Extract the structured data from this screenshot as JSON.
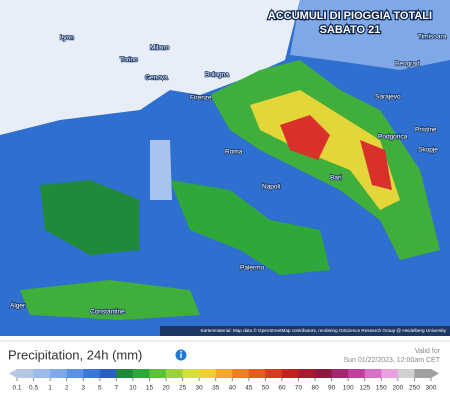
{
  "map": {
    "title": "ACCUMULI DI PIOGGIA TOTALI",
    "subtitle": "SABATO 21",
    "cities": [
      "Lyon",
      "Milano",
      "Torino",
      "Genova",
      "Bologna",
      "Firenze",
      "Roma",
      "Napoli",
      "Bari",
      "Palermo",
      "Sarajevo",
      "Podgorica",
      "Skopje",
      "Pristine",
      "Beograd",
      "Timisoara",
      "Alger",
      "Constantine"
    ],
    "attribution": "Kartenmaterial: Map data © OpenStreetMap contributors, rendering GIScience Research Group @ Heidelberg University"
  },
  "legend": {
    "title": "Precipitation, 24h (mm)",
    "valid_label": "Valid for",
    "valid_time": "Sun 01/22/2023, 12:00am CET",
    "ticks": [
      0.1,
      0.5,
      1,
      2,
      3,
      5,
      7,
      10,
      15,
      20,
      25,
      30,
      35,
      40,
      45,
      50,
      60,
      70,
      80,
      90,
      100,
      125,
      150,
      200,
      250,
      300
    ],
    "colors": [
      "#b4c8e6",
      "#9bbbe8",
      "#7eaaea",
      "#5b93e3",
      "#3a78d8",
      "#2a5fc0",
      "#1f8a3a",
      "#2fa83a",
      "#5cc23a",
      "#9bd13a",
      "#d6e03a",
      "#f0d030",
      "#f0a828",
      "#ec8024",
      "#e45a20",
      "#d83a20",
      "#c42020",
      "#a81830",
      "#8c1840",
      "#a02870",
      "#c040a0",
      "#d870c8",
      "#e8a0e0",
      "#d0d0d0",
      "#a0a0a0"
    ]
  }
}
